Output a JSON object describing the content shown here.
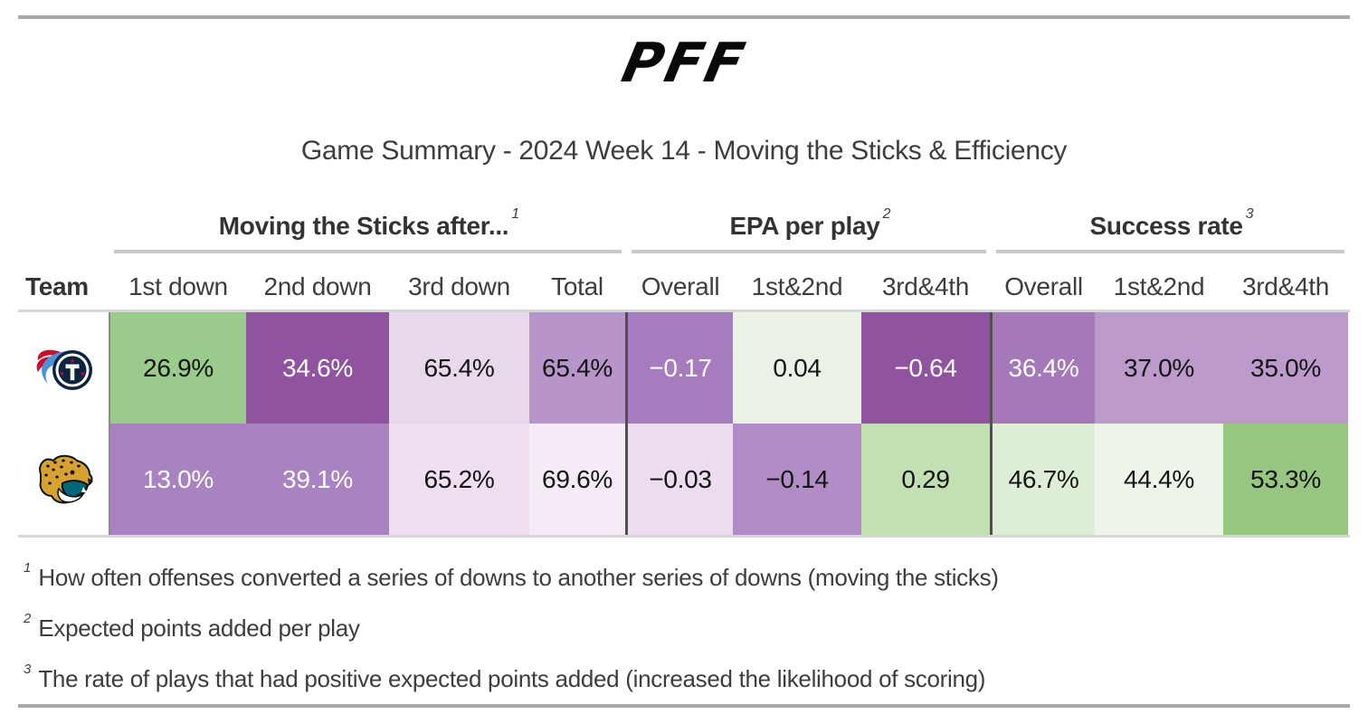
{
  "brand": {
    "logo_text": "PFF"
  },
  "title": "Game Summary - 2024 Week 14 - Moving the Sticks & Efficiency",
  "chart_data": {
    "type": "table",
    "title": "Game Summary - 2024 Week 14 - Moving the Sticks & Efficiency",
    "team_column_header": "Team",
    "column_groups": [
      {
        "label": "Moving the Sticks after...",
        "sup": "1",
        "columns": [
          "1st down",
          "2nd down",
          "3rd down",
          "Total"
        ]
      },
      {
        "label": "EPA per play",
        "sup": "2",
        "columns": [
          "Overall",
          "1st&2nd",
          "3rd&4th"
        ]
      },
      {
        "label": "Success rate",
        "sup": "3",
        "columns": [
          "Overall",
          "1st&2nd",
          "3rd&4th"
        ]
      }
    ],
    "rows": [
      {
        "team": "Tennessee Titans",
        "team_logo": "tennessee-titans-logo",
        "cells": [
          {
            "value": "26.9%",
            "bg": "#9bcb8c",
            "fg": "#141414"
          },
          {
            "value": "34.6%",
            "bg": "#8f53a0",
            "fg": "#ffffff"
          },
          {
            "value": "65.4%",
            "bg": "#e7d9eb",
            "fg": "#141414"
          },
          {
            "value": "65.4%",
            "bg": "#b794c9",
            "fg": "#141414"
          },
          {
            "value": "−0.17",
            "bg": "#a77cbe",
            "fg": "#ffffff"
          },
          {
            "value": "0.04",
            "bg": "#e9f2e4",
            "fg": "#141414"
          },
          {
            "value": "−0.64",
            "bg": "#8f53a0",
            "fg": "#ffffff"
          },
          {
            "value": "36.4%",
            "bg": "#a478b9",
            "fg": "#ffffff"
          },
          {
            "value": "37.0%",
            "bg": "#bc9bcc",
            "fg": "#141414"
          },
          {
            "value": "35.0%",
            "bg": "#bc9bcc",
            "fg": "#141414"
          }
        ]
      },
      {
        "team": "Jacksonville Jaguars",
        "team_logo": "jacksonville-jaguars-logo",
        "cells": [
          {
            "value": "13.0%",
            "bg": "#a983c1",
            "fg": "#ffffff"
          },
          {
            "value": "39.1%",
            "bg": "#a983c1",
            "fg": "#ffffff"
          },
          {
            "value": "65.2%",
            "bg": "#eedef0",
            "fg": "#141414"
          },
          {
            "value": "69.6%",
            "bg": "#f4ebf6",
            "fg": "#141414"
          },
          {
            "value": "−0.03",
            "bg": "#ecdcf0",
            "fg": "#141414"
          },
          {
            "value": "−0.14",
            "bg": "#b28cc6",
            "fg": "#141414"
          },
          {
            "value": "0.29",
            "bg": "#c3e0b2",
            "fg": "#141414"
          },
          {
            "value": "46.7%",
            "bg": "#deeed6",
            "fg": "#141414"
          },
          {
            "value": "44.4%",
            "bg": "#ecf5e7",
            "fg": "#141414"
          },
          {
            "value": "53.3%",
            "bg": "#96c67f",
            "fg": "#141414"
          }
        ]
      }
    ]
  },
  "footnotes": [
    {
      "ref": "1",
      "text": "How often offenses converted a series of downs to another series of downs (moving the sticks)"
    },
    {
      "ref": "2",
      "text": "Expected points added per play"
    },
    {
      "ref": "3",
      "text": "The rate of plays that had positive expected points added (increased the likelihood of scoring)"
    }
  ]
}
